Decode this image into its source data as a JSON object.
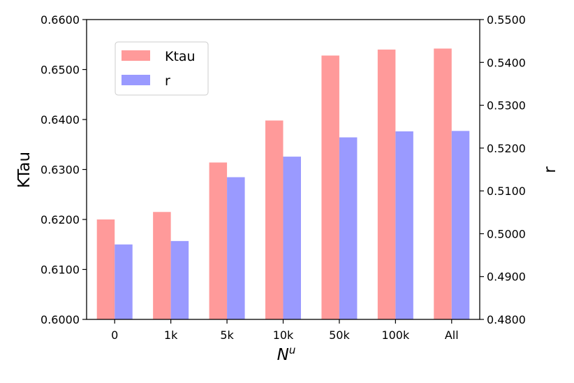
{
  "chart_data": {
    "type": "bar",
    "categories": [
      "0",
      "1k",
      "5k",
      "10k",
      "50k",
      "100k",
      "All"
    ],
    "xlabel": "N^u",
    "xlabel_base": "N",
    "xlabel_sup": "u",
    "series": [
      {
        "name": "Ktau",
        "axis": "left",
        "color": "#ff9a9a",
        "values": [
          0.62,
          0.6215,
          0.6314,
          0.6398,
          0.6528,
          0.654,
          0.6542
        ]
      },
      {
        "name": "r",
        "axis": "right",
        "color": "#9a9aff",
        "values": [
          0.4975,
          0.4983,
          0.5132,
          0.518,
          0.5225,
          0.5239,
          0.524
        ]
      }
    ],
    "left_axis": {
      "label": "KTau",
      "ylim": [
        0.6,
        0.66
      ],
      "ticks": [
        "0.6000",
        "0.6100",
        "0.6200",
        "0.6300",
        "0.6400",
        "0.6500",
        "0.6600"
      ],
      "tick_values": [
        0.6,
        0.61,
        0.62,
        0.63,
        0.64,
        0.65,
        0.66
      ]
    },
    "right_axis": {
      "label": "r",
      "ylim": [
        0.48,
        0.55
      ],
      "ticks": [
        "0.4800",
        "0.4900",
        "0.5000",
        "0.5100",
        "0.5200",
        "0.5300",
        "0.5400",
        "0.5500"
      ],
      "tick_values": [
        0.48,
        0.49,
        0.5,
        0.51,
        0.52,
        0.53,
        0.54,
        0.55
      ]
    },
    "legend": {
      "placement": "upper-left",
      "items": [
        {
          "label": "Ktau",
          "color": "#ff9a9a"
        },
        {
          "label": "r",
          "color": "#9a9aff"
        }
      ]
    },
    "grid": false
  }
}
